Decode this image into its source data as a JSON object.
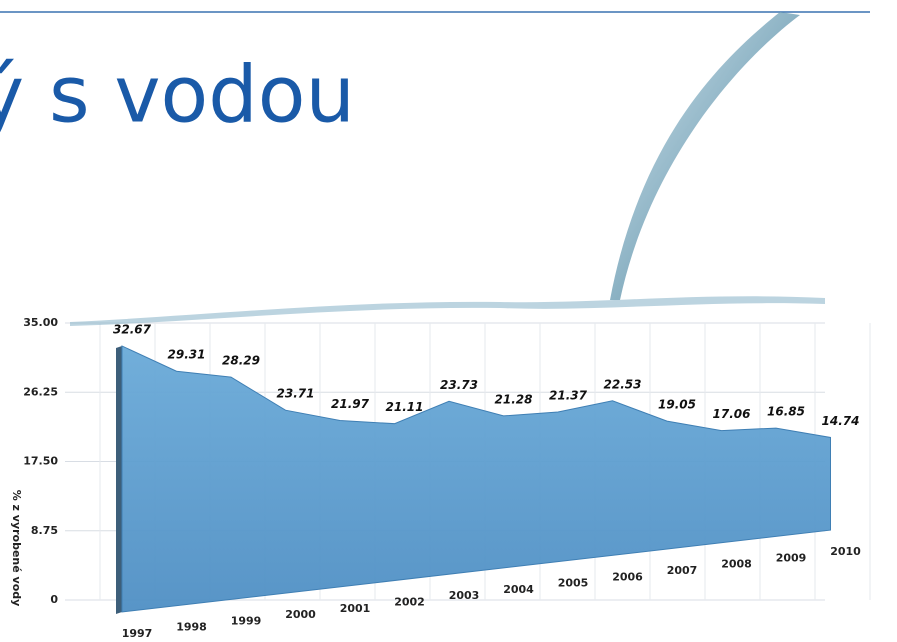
{
  "chart_data": {
    "type": "area",
    "title": "ý s vodou",
    "y_label": "% z vyrobené vody",
    "categories": [
      "1997",
      "1998",
      "1999",
      "2000",
      "2001",
      "2002",
      "2003",
      "2004",
      "2005",
      "2006",
      "2007",
      "2008",
      "2009",
      "2010"
    ],
    "values": [
      32.67,
      29.31,
      28.29,
      23.71,
      21.97,
      21.11,
      23.73,
      21.28,
      21.37,
      22.53,
      19.05,
      17.06,
      16.85,
      14.74
    ],
    "color": "#5a9bd0",
    "ylim": [
      0,
      35
    ],
    "yticks": [
      0,
      8.75,
      {
        "value": 17.5,
        "label": "17.50"
      },
      26.25,
      {
        "value": 35,
        "label": "35.00"
      }
    ],
    "grid": true
  }
}
